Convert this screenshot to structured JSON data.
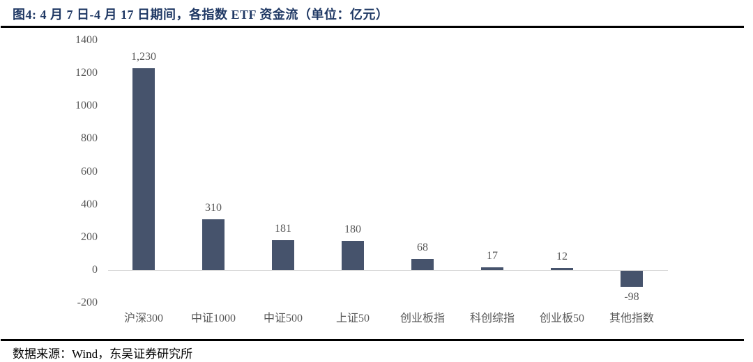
{
  "header": {
    "title": "图4:  4 月 7 日-4 月 17 日期间，各指数 ETF 资金流（单位：亿元）"
  },
  "footer": {
    "source": "数据来源：Wind，东吴证券研究所"
  },
  "colors": {
    "title": "#1F3864",
    "bar": "#46536C",
    "axis_text": "#595959",
    "zero_line": "#D9D9D9",
    "rule": "#000000"
  },
  "chart_data": {
    "type": "bar",
    "title": "图4: 4月7日-4月17日期间，各指数ETF资金流（单位：亿元）",
    "unit": "亿元",
    "categories": [
      "沪深300",
      "中证1000",
      "中证500",
      "上证50",
      "创业板指",
      "科创综指",
      "创业板50",
      "其他指数"
    ],
    "values": [
      1230,
      310,
      181,
      180,
      68,
      17,
      12,
      -98
    ],
    "data_labels": [
      "1,230",
      "310",
      "181",
      "180",
      "68",
      "17",
      "12",
      "-98"
    ],
    "y_ticks": [
      1400,
      1200,
      1000,
      800,
      600,
      400,
      200,
      0,
      -200
    ],
    "ylim": [
      -200,
      1400
    ],
    "grid": false,
    "legend": "none",
    "bar_color": "#46536C",
    "axis_label_color": "#595959",
    "zero_line_color": "#D9D9D9"
  }
}
